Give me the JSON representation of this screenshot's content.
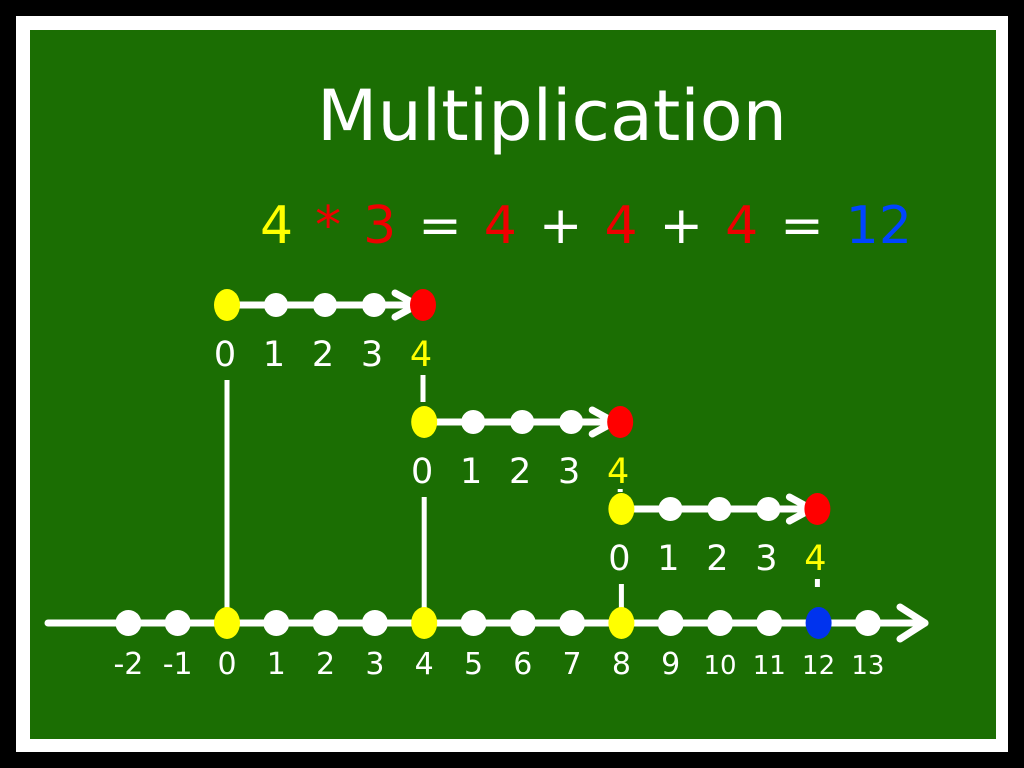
{
  "title": "Multiplication",
  "equation": {
    "tokens": [
      {
        "text": "4",
        "color": "#ffff00"
      },
      {
        "text": "*",
        "color": "#ee0000"
      },
      {
        "text": "3",
        "color": "#ee0000"
      },
      {
        "text": "=",
        "color": "#ffffff"
      },
      {
        "text": "4",
        "color": "#ee0000"
      },
      {
        "text": "+",
        "color": "#ffffff"
      },
      {
        "text": "4",
        "color": "#ee0000"
      },
      {
        "text": "+",
        "color": "#ffffff"
      },
      {
        "text": "4",
        "color": "#ee0000"
      },
      {
        "text": "=",
        "color": "#ffffff"
      },
      {
        "text": "12",
        "color": "#0044ff"
      }
    ]
  },
  "colors": {
    "board": "#1b6e03",
    "chalk": "#ffffff",
    "start_dot": "#ffff00",
    "end_dot": "#ff0000",
    "result_dot": "#0033ee"
  },
  "main_line": {
    "labels": [
      "-2",
      "-1",
      "0",
      "1",
      "2",
      "3",
      "4",
      "5",
      "6",
      "7",
      "8",
      "9",
      "10",
      "11",
      "12",
      "13"
    ],
    "start_values": [
      "0",
      "4",
      "8"
    ],
    "result_value": "12"
  },
  "steps": [
    {
      "start": "0",
      "end": "4",
      "labels": [
        "0",
        "1",
        "2",
        "3",
        "4"
      ]
    },
    {
      "start": "4",
      "end": "8",
      "labels": [
        "0",
        "1",
        "2",
        "3",
        "4"
      ]
    },
    {
      "start": "8",
      "end": "12",
      "labels": [
        "0",
        "1",
        "2",
        "3",
        "4"
      ]
    }
  ]
}
